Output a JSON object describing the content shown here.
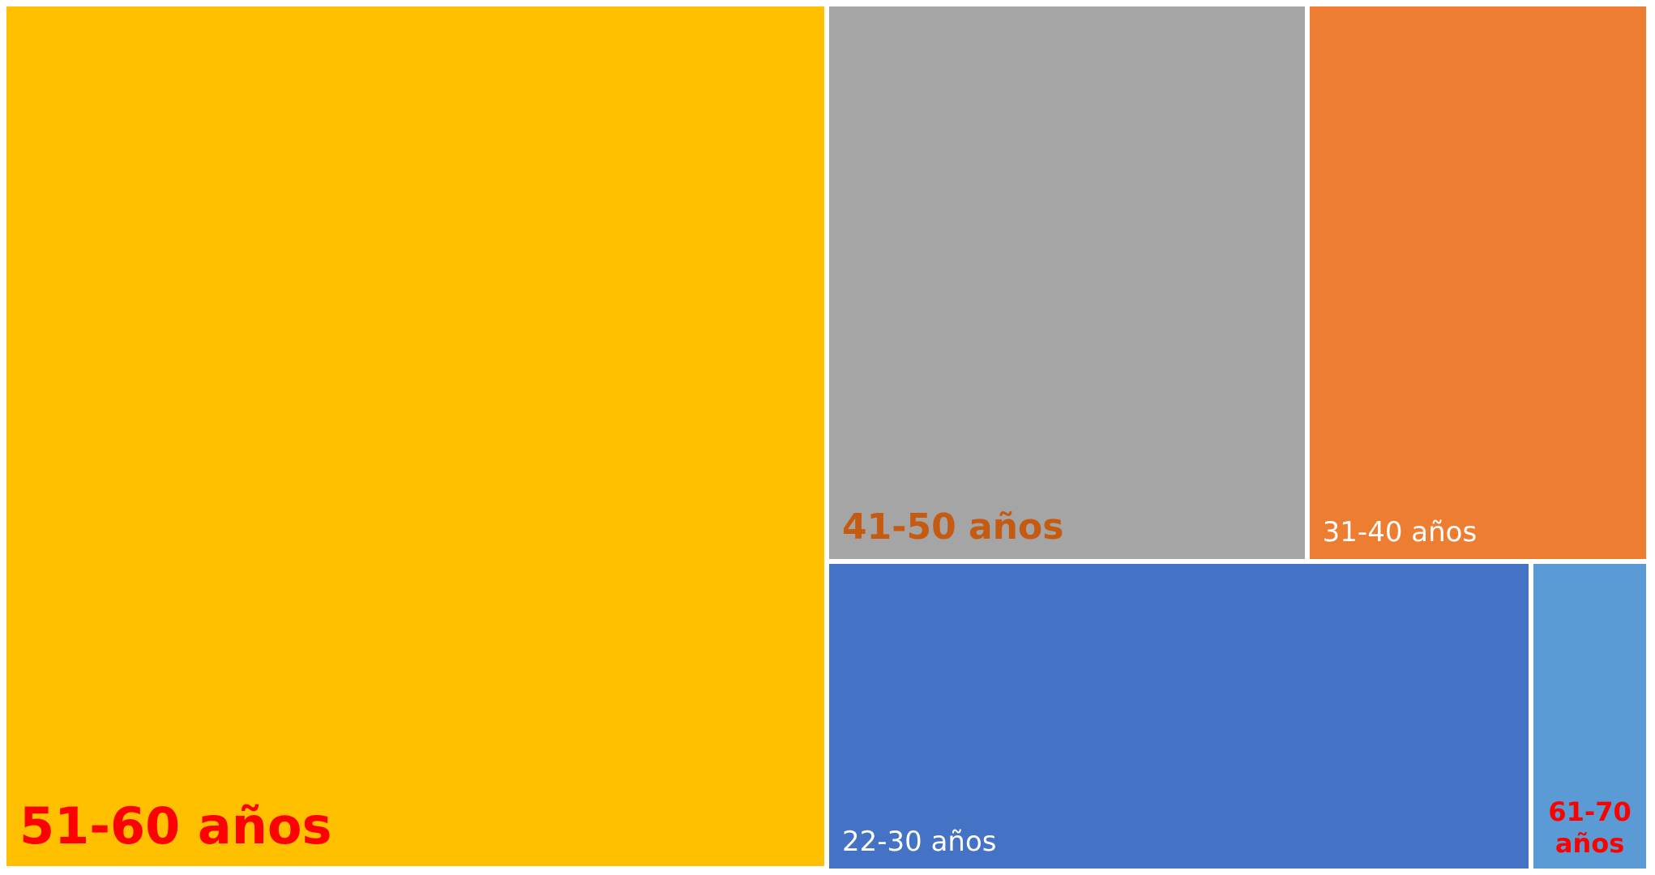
{
  "chart_data": {
    "type": "treemap",
    "title": "",
    "items": [
      {
        "label": "51-60 años",
        "value": 1000,
        "color": "#FFC000",
        "label_color": "#FF0000"
      },
      {
        "label": "41-50 años",
        "value": 377,
        "color": "#A5A5A5",
        "label_color": "#C55A11"
      },
      {
        "label": "31-40 años",
        "value": 268,
        "color": "#ED7D31",
        "label_color": "#FFFFFF"
      },
      {
        "label": "22-30 años",
        "value": 306,
        "color": "#4472C4",
        "label_color": "#FFFFFF"
      },
      {
        "label": "61-70 años",
        "value": 51,
        "color": "#5B9BD5",
        "label_color": "#FF0000"
      }
    ]
  }
}
